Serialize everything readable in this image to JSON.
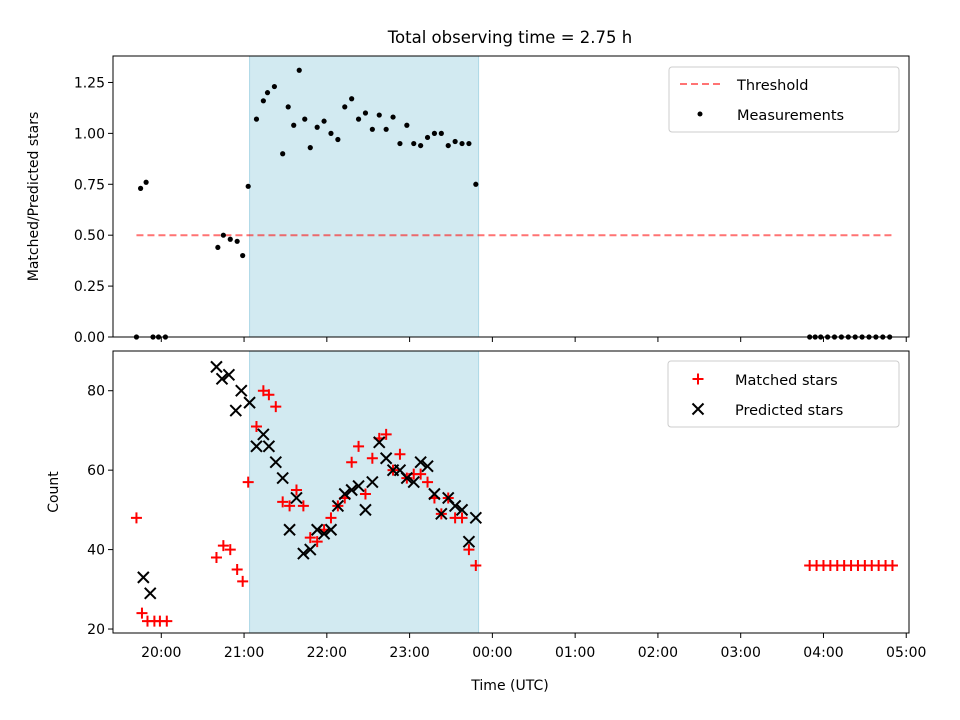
{
  "figure": {
    "title": "Total observing time = 2.75 h",
    "xlabel": "Time (UTC)"
  },
  "colors": {
    "shade": "#add8e6",
    "threshold": "#ff0000",
    "measurements": "#000000",
    "matched": "#ff0000",
    "predicted": "#000000"
  },
  "chart_data": [
    {
      "type": "scatter",
      "ylabel": "Matched/Predicted stars",
      "xlim": [
        "19:25",
        "05:02"
      ],
      "ylim": [
        0,
        1.38
      ],
      "yticks": [
        "0.00",
        "0.25",
        "0.50",
        "0.75",
        "1.00",
        "1.25"
      ],
      "ytick_values": [
        0,
        0.25,
        0.5,
        0.75,
        1.0,
        1.25
      ],
      "grid": false,
      "legend_position": "top-right",
      "shaded_span": [
        "21:04",
        "23:50"
      ],
      "threshold": {
        "name": "Threshold",
        "y": 0.5,
        "x_range": [
          "19:42",
          "04:50"
        ],
        "style": "dashed"
      },
      "series": [
        {
          "name": "Measurements",
          "marker": "dot",
          "x": [
            "19:42",
            "19:45",
            "19:49",
            "19:54",
            "19:58",
            "20:03",
            "20:41",
            "20:45",
            "20:50",
            "20:55",
            "20:59",
            "21:03",
            "21:09",
            "21:14",
            "21:17",
            "21:22",
            "21:28",
            "21:32",
            "21:36",
            "21:40",
            "21:44",
            "21:48",
            "21:53",
            "21:58",
            "22:03",
            "22:08",
            "22:13",
            "22:18",
            "22:23",
            "22:28",
            "22:33",
            "22:38",
            "22:43",
            "22:48",
            "22:53",
            "22:58",
            "23:03",
            "23:08",
            "23:13",
            "23:18",
            "23:23",
            "23:28",
            "23:33",
            "23:38",
            "23:43",
            "23:48",
            "03:50",
            "03:54",
            "03:58",
            "04:03",
            "04:08",
            "04:13",
            "04:18",
            "04:23",
            "04:28",
            "04:33",
            "04:38",
            "04:43",
            "04:48"
          ],
          "y": [
            0.0,
            0.73,
            0.76,
            0.0,
            0.0,
            0.0,
            0.44,
            0.5,
            0.48,
            0.47,
            0.4,
            0.74,
            1.07,
            1.16,
            1.2,
            1.23,
            0.9,
            1.13,
            1.04,
            1.31,
            1.07,
            0.93,
            1.03,
            1.06,
            1.0,
            0.97,
            1.13,
            1.17,
            1.07,
            1.1,
            1.02,
            1.09,
            1.02,
            1.08,
            0.95,
            1.04,
            0.95,
            0.94,
            0.98,
            1.0,
            1.0,
            0.94,
            0.96,
            0.95,
            0.95,
            0.75,
            0.0,
            0.0,
            0.0,
            0.0,
            0.0,
            0.0,
            0.0,
            0.0,
            0.0,
            0.0,
            0.0,
            0.0,
            0.0
          ]
        }
      ]
    },
    {
      "type": "scatter",
      "ylabel": "Count",
      "xlim": [
        "19:25",
        "05:02"
      ],
      "ylim": [
        19,
        90
      ],
      "yticks": [
        "20",
        "40",
        "60",
        "80"
      ],
      "ytick_values": [
        20,
        40,
        60,
        80
      ],
      "xticks": [
        "20:00",
        "21:00",
        "22:00",
        "23:00",
        "00:00",
        "01:00",
        "02:00",
        "03:00",
        "04:00",
        "05:00"
      ],
      "grid": false,
      "legend_position": "top-right",
      "shaded_span": [
        "21:04",
        "23:50"
      ],
      "series": [
        {
          "name": "Matched stars",
          "marker": "plus",
          "x": [
            "19:42",
            "19:46",
            "19:50",
            "19:55",
            "19:59",
            "20:04",
            "20:40",
            "20:45",
            "20:50",
            "20:55",
            "20:59",
            "21:03",
            "21:09",
            "21:14",
            "21:18",
            "21:23",
            "21:28",
            "21:33",
            "21:38",
            "21:43",
            "21:48",
            "21:53",
            "21:58",
            "22:03",
            "22:08",
            "22:13",
            "22:18",
            "22:23",
            "22:28",
            "22:33",
            "22:38",
            "22:43",
            "22:48",
            "22:53",
            "22:58",
            "23:03",
            "23:08",
            "23:13",
            "23:18",
            "23:23",
            "23:28",
            "23:33",
            "23:38",
            "23:43",
            "23:48",
            "03:50",
            "03:55",
            "04:00",
            "04:05",
            "04:10",
            "04:15",
            "04:20",
            "04:25",
            "04:30",
            "04:35",
            "04:40",
            "04:45",
            "04:50"
          ],
          "y": [
            48,
            24,
            22,
            22,
            22,
            22,
            38,
            41,
            40,
            35,
            32,
            57,
            71,
            80,
            79,
            76,
            52,
            51,
            55,
            51,
            43,
            42,
            45,
            48,
            51,
            53,
            62,
            66,
            54,
            63,
            68,
            69,
            60,
            64,
            58,
            59,
            59,
            57,
            53,
            49,
            53,
            48,
            48,
            40,
            36,
            36,
            36,
            36,
            36,
            36,
            36,
            36,
            36,
            36,
            36,
            36,
            36,
            36
          ]
        },
        {
          "name": "Predicted stars",
          "marker": "x",
          "x": [
            "19:47",
            "19:52",
            "20:40",
            "20:44",
            "20:49",
            "20:54",
            "20:58",
            "21:04",
            "21:09",
            "21:14",
            "21:18",
            "21:23",
            "21:28",
            "21:33",
            "21:38",
            "21:43",
            "21:48",
            "21:53",
            "21:58",
            "22:03",
            "22:08",
            "22:13",
            "22:18",
            "22:23",
            "22:28",
            "22:33",
            "22:38",
            "22:43",
            "22:48",
            "22:53",
            "22:58",
            "23:03",
            "23:08",
            "23:13",
            "23:18",
            "23:23",
            "23:28",
            "23:33",
            "23:38",
            "23:43",
            "23:48"
          ],
          "y": [
            33,
            29,
            86,
            83,
            84,
            75,
            80,
            77,
            66,
            69,
            66,
            62,
            58,
            45,
            53,
            39,
            40,
            45,
            44,
            45,
            51,
            54,
            55,
            56,
            50,
            57,
            67,
            63,
            60,
            60,
            58,
            57,
            62,
            61,
            54,
            49,
            53,
            51,
            50,
            42,
            48
          ]
        }
      ]
    }
  ]
}
